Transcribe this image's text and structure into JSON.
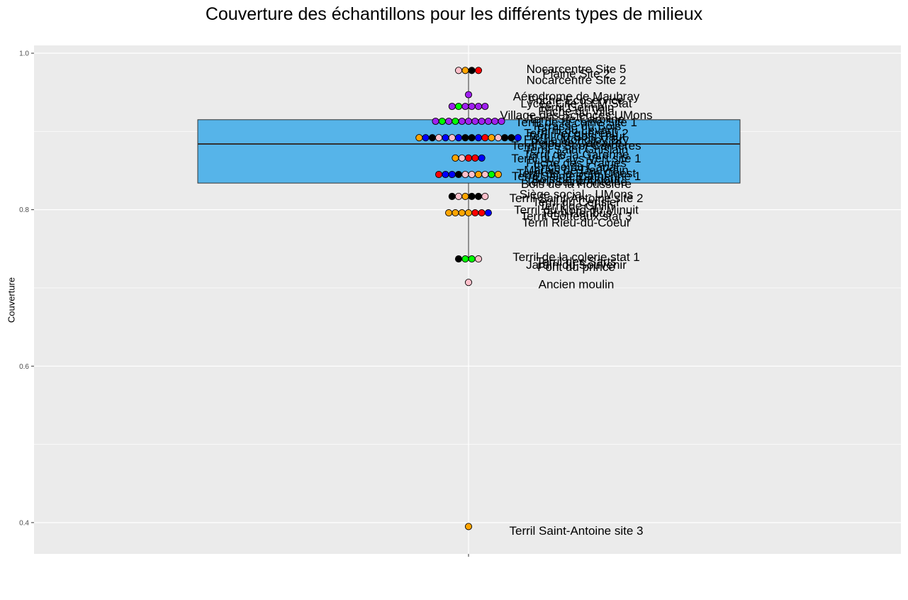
{
  "chart_data": {
    "type": "boxplot-dotplot",
    "title": "Couverture des échantillons pour les différents types de milieux",
    "xlabel": "",
    "ylabel": "Couverture",
    "ylim": [
      0.36,
      1.01
    ],
    "y_ticks": [
      0.4,
      0.6,
      0.8,
      1.0
    ],
    "y_tick_labels": [
      "0.4",
      "0.6",
      "0.8",
      "1.0"
    ],
    "grid": true,
    "background": "#ebebeb",
    "box": {
      "fill": "#56b4e9",
      "q1": 0.834,
      "median": 0.884,
      "q3": 0.915,
      "whisker_low": 0.737,
      "whisker_high": 0.978
    },
    "colors": {
      "orange": "#ffa500",
      "red": "#ff0000",
      "black": "#000000",
      "pink": "#ffc0cb",
      "purple": "#a020f0",
      "green": "#00ff00",
      "blue": "#0000ff"
    },
    "dot_rows": [
      {
        "y": 0.978,
        "colors": [
          "pink",
          "orange",
          "black",
          "red"
        ]
      },
      {
        "y": 0.947,
        "colors": [
          "purple"
        ]
      },
      {
        "y": 0.932,
        "colors": [
          "purple",
          "green",
          "purple",
          "purple",
          "purple",
          "purple"
        ]
      },
      {
        "y": 0.913,
        "colors": [
          "purple",
          "green",
          "purple",
          "green",
          "purple",
          "purple",
          "purple",
          "purple",
          "purple",
          "purple",
          "purple"
        ]
      },
      {
        "y": 0.892,
        "colors": [
          "orange",
          "blue",
          "black",
          "pink",
          "blue",
          "pink",
          "blue",
          "black",
          "black",
          "blue",
          "red",
          "orange",
          "pink",
          "black",
          "black",
          "blue"
        ]
      },
      {
        "y": 0.866,
        "colors": [
          "orange",
          "pink",
          "red",
          "red",
          "blue"
        ]
      },
      {
        "y": 0.845,
        "colors": [
          "red",
          "blue",
          "blue",
          "black",
          "pink",
          "pink",
          "orange",
          "pink",
          "green",
          "orange"
        ]
      },
      {
        "y": 0.817,
        "colors": [
          "black",
          "pink",
          "orange",
          "black",
          "black",
          "pink"
        ]
      },
      {
        "y": 0.796,
        "colors": [
          "orange",
          "orange",
          "orange",
          "orange",
          "red",
          "red",
          "blue"
        ]
      },
      {
        "y": 0.737,
        "colors": [
          "black",
          "green",
          "green",
          "pink"
        ]
      },
      {
        "y": 0.707,
        "colors": [
          "pink"
        ]
      },
      {
        "y": 0.395,
        "colors": [
          "orange"
        ]
      }
    ],
    "labels": [
      {
        "text": "Nocarcentre Site 5",
        "y": 0.98
      },
      {
        "text": "Plaine Site 2",
        "y": 0.974
      },
      {
        "text": "Nocarcentre Site 2",
        "y": 0.966
      },
      {
        "text": "Aérodrome de Maubray",
        "y": 0.945
      },
      {
        "text": "Friche Ecoservice",
        "y": 0.94
      },
      {
        "text": "Lycée Cité ILLM Stat",
        "y": 0.936
      },
      {
        "text": "Terril Germain",
        "y": 0.931
      },
      {
        "text": "Friche du Villa",
        "y": 0.926
      },
      {
        "text": "Village des Sciences UMons",
        "y": 0.921
      },
      {
        "text": "Terril Ste-Caroline",
        "y": 0.916
      },
      {
        "text": "Terril de la colrie Site 1",
        "y": 0.912
      },
      {
        "text": "Terrasse du Bois",
        "y": 0.907
      },
      {
        "text": "Terril du Levant",
        "y": 0.902
      },
      {
        "text": "Terril Pecquereau 2",
        "y": 0.898
      },
      {
        "text": "Terril du Bois Haut",
        "y": 0.894
      },
      {
        "text": "Friche Monoroy Bry",
        "y": 0.89
      },
      {
        "text": "Pelouse Calcaire",
        "y": 0.886
      },
      {
        "text": "Terril des Sept Carrières",
        "y": 0.882
      },
      {
        "text": "Terril Saint Ghislain",
        "y": 0.877
      },
      {
        "text": "Terril de la Garenne",
        "y": 0.871
      },
      {
        "text": "Terril du Pays Vert site 1",
        "y": 0.866
      },
      {
        "text": "Friche des Prairies",
        "y": 0.86
      },
      {
        "text": "Friche du Canal",
        "y": 0.855
      },
      {
        "text": "Marais de Douvrain",
        "y": 0.851
      },
      {
        "text": "Terril de la Bête Ouest",
        "y": 0.847
      },
      {
        "text": "Terril Sainte Catherine 1",
        "y": 0.843
      },
      {
        "text": "Bois de Baudour",
        "y": 0.839
      },
      {
        "text": "Terril Saint-Antoine",
        "y": 0.836
      },
      {
        "text": "Bois de la Houssière",
        "y": 0.833
      },
      {
        "text": "Siège social - UMons",
        "y": 0.82
      },
      {
        "text": "Terril Saint-Antoine site 2",
        "y": 0.815
      },
      {
        "text": "Terril du Cerisier",
        "y": 0.81
      },
      {
        "text": "Terril de Ghlin",
        "y": 0.805
      },
      {
        "text": "Terril du Nord du Minuit",
        "y": 0.8
      },
      {
        "text": "Terril Heribus",
        "y": 0.796
      },
      {
        "text": "Terril Gotteaux stat 3",
        "y": 0.792
      },
      {
        "text": "Terril Rieu-du-Coeur",
        "y": 0.784
      },
      {
        "text": "Terril de la colerie stat 1",
        "y": 0.74
      },
      {
        "text": "Terril des Sarts",
        "y": 0.734
      },
      {
        "text": "Jardin du Souvenir",
        "y": 0.73
      },
      {
        "text": "Pont du prince",
        "y": 0.727
      },
      {
        "text": "Ancien moulin",
        "y": 0.705
      },
      {
        "text": "Terril Saint-Antoine site 3",
        "y": 0.39
      }
    ]
  }
}
